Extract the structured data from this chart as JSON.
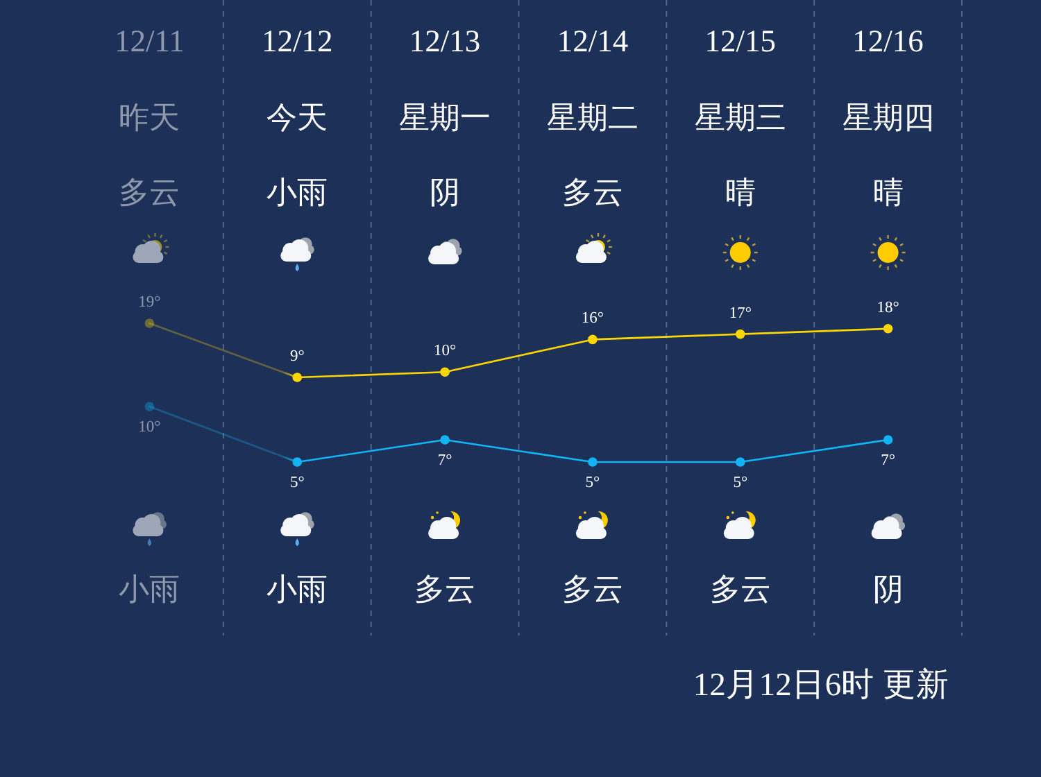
{
  "chart_data": [
    {
      "type": "line",
      "categories": [
        "12/11",
        "12/12",
        "12/13",
        "12/14",
        "12/15",
        "12/16"
      ],
      "series": [
        {
          "color": "#ffd700",
          "values": [
            19,
            9,
            10,
            16,
            17,
            18
          ],
          "value_labels": [
            "19°",
            "9°",
            "10°",
            "16°",
            "17°",
            "18°"
          ]
        }
      ],
      "annotations": [
        "昨天",
        "今天",
        "星期一",
        "星期二",
        "星期三",
        "星期四",
        "多云",
        "小雨",
        "阴",
        "多云",
        "晴",
        "晴"
      ],
      "grid": "x",
      "marker": "circle",
      "line_style": "solid",
      "tick_labels": "x"
    },
    {
      "type": "line",
      "categories": [
        null,
        null,
        null,
        null,
        null,
        null
      ],
      "series": [
        {
          "color": "#12b4f5",
          "values": [
            10,
            5,
            7,
            5,
            5,
            7
          ],
          "value_labels": [
            "10°",
            "5°",
            "7°",
            "5°",
            "5°",
            "7°"
          ]
        }
      ],
      "annotations": [
        "小雨",
        "小雨",
        "多云",
        "多云",
        "多云",
        "阴",
        "12月12日6时 更新"
      ],
      "grid": "x",
      "marker": "circle",
      "line_style": "solid"
    }
  ]
}
